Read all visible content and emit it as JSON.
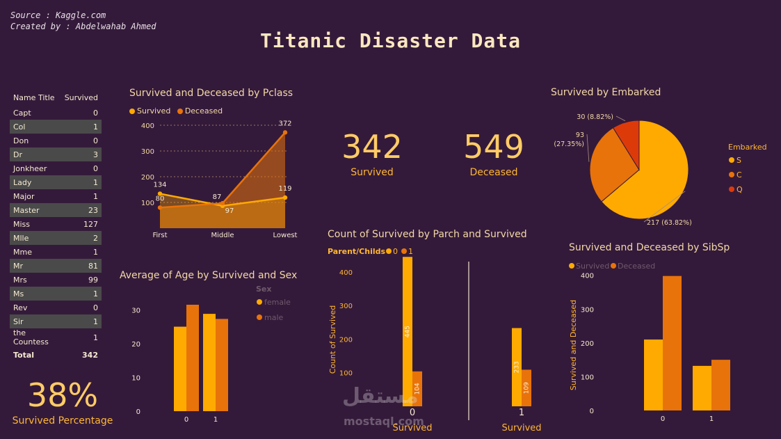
{
  "header": {
    "source": "Source : Kaggle.com",
    "created_by": "Created by : Abdelwahab Ahmed",
    "title": "Titanic Disaster Data"
  },
  "colors": {
    "background": "#341a3a",
    "survived": "#ffaa00",
    "deceased": "#e8730a",
    "third": "#dd3a0a",
    "text": "#f2d9a6"
  },
  "name_table": {
    "headers": [
      "Name Title",
      "Survived"
    ],
    "rows": [
      {
        "name": "Capt",
        "value": "0"
      },
      {
        "name": "Col",
        "value": "1"
      },
      {
        "name": "Don",
        "value": "0"
      },
      {
        "name": "Dr",
        "value": "3"
      },
      {
        "name": "Jonkheer",
        "value": "0"
      },
      {
        "name": "Lady",
        "value": "1"
      },
      {
        "name": "Major",
        "value": "1"
      },
      {
        "name": "Master",
        "value": "23"
      },
      {
        "name": "Miss",
        "value": "127"
      },
      {
        "name": "Mlle",
        "value": "2"
      },
      {
        "name": "Mme",
        "value": "1"
      },
      {
        "name": "Mr",
        "value": "81"
      },
      {
        "name": "Mrs",
        "value": "99"
      },
      {
        "name": "Ms",
        "value": "1"
      },
      {
        "name": "Rev",
        "value": "0"
      },
      {
        "name": "Sir",
        "value": "1"
      },
      {
        "name": "the Countess",
        "value": "1"
      }
    ],
    "total_label": "Total",
    "total_value": "342"
  },
  "kpis": {
    "survived_pct": "38%",
    "survived_pct_label": "Survived Percentage",
    "survived": "342",
    "survived_label": "Survived",
    "deceased": "549",
    "deceased_label": "Deceased"
  },
  "watermark": {
    "arabic": "مستقل",
    "latin": "mostaql.com"
  },
  "chart_data": [
    {
      "id": "pclass",
      "type": "area",
      "title": "Survived and Deceased by Pclass",
      "categories": [
        "First",
        "Middle",
        "Lowest"
      ],
      "series": [
        {
          "name": "Survived",
          "values": [
            134,
            87,
            119
          ]
        },
        {
          "name": "Deceased",
          "values": [
            80,
            97,
            372
          ]
        }
      ],
      "ylim": [
        0,
        400
      ],
      "yticks": [
        100,
        200,
        300,
        400
      ],
      "grid": true,
      "legend": "top-left"
    },
    {
      "id": "age",
      "type": "bar",
      "title": "Average of Age by Survived and Sex",
      "legend_title": "Sex",
      "categories": [
        "0",
        "1"
      ],
      "series": [
        {
          "name": "female",
          "values": [
            25.0,
            28.8
          ]
        },
        {
          "name": "male",
          "values": [
            31.5,
            27.3
          ]
        }
      ],
      "ylim": [
        0,
        35
      ],
      "yticks": [
        0,
        10,
        20,
        30
      ],
      "legend": "right"
    },
    {
      "id": "parch",
      "type": "bar",
      "title": "Count of Survived by Parch and Survived",
      "legend_title": "Parent/Childs",
      "ylabel": "Count of Survived",
      "xlabel": "Survived",
      "facets": [
        "0",
        "1"
      ],
      "series": [
        {
          "name": "0",
          "values": [
            445,
            233
          ]
        },
        {
          "name": "1",
          "values": [
            104,
            109
          ]
        }
      ],
      "ylim": [
        0,
        460
      ],
      "yticks": [
        100,
        200,
        300,
        400
      ],
      "legend": "top-left"
    },
    {
      "id": "embarked",
      "type": "pie",
      "title": "Survived by Embarked",
      "legend_title": "Embarked",
      "slices": [
        {
          "label": "S",
          "value": 217,
          "text": "217 (63.82%)"
        },
        {
          "label": "C",
          "value": 93,
          "text": "93 (27.35%)"
        },
        {
          "label": "Q",
          "value": 30,
          "text": "30 (8.82%)"
        }
      ],
      "legend": "right"
    },
    {
      "id": "sibsp",
      "type": "bar",
      "title": "Survived and Deceased by SibSp",
      "ylabel": "Survived and Deceased",
      "categories": [
        "0",
        "1"
      ],
      "series": [
        {
          "name": "Survived",
          "values": [
            210,
            132
          ]
        },
        {
          "name": "Deceased",
          "values": [
            398,
            150
          ]
        }
      ],
      "ylim": [
        0,
        420
      ],
      "yticks": [
        0,
        100,
        200,
        300,
        400
      ],
      "legend": "top-left"
    }
  ]
}
